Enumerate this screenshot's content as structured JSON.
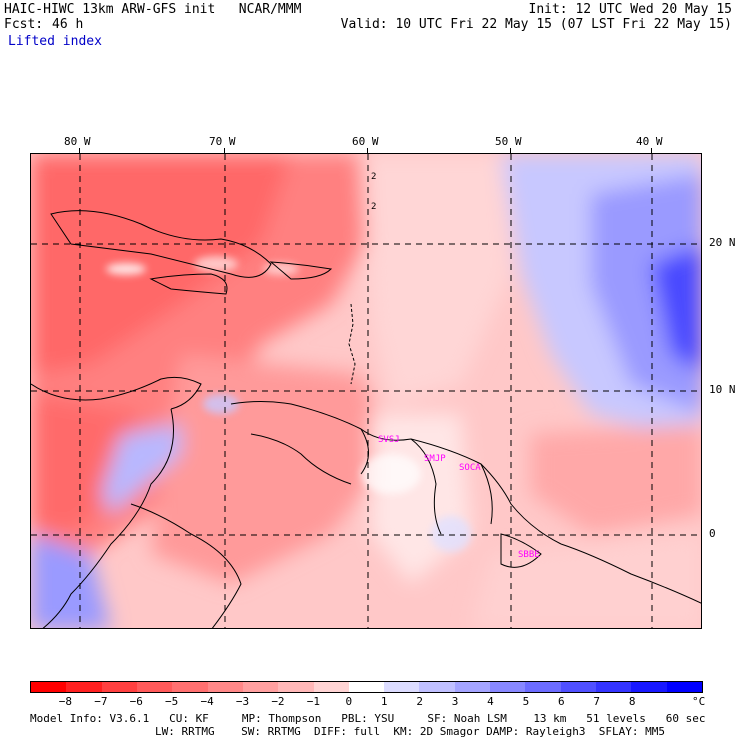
{
  "header": {
    "model_title": "HAIC-HIWC 13km ARW-GFS init   NCAR/MMM",
    "init": "Init: 12 UTC Wed 20 May 15",
    "fcst_label": "Fcst:",
    "fcst_value": "46 h",
    "valid": "Valid: 10 UTC Fri 22 May 15 (07 LST Fri 22 May 15)",
    "field": "Lifted index"
  },
  "map": {
    "lon_labels": [
      "80 W",
      "70 W",
      "60 W",
      "50 W",
      "40 W"
    ],
    "lat_labels": [
      "20 N",
      "10 N",
      "0"
    ],
    "stations": [
      "SVSJ",
      "SMJP",
      "SOCA",
      "SBBE"
    ],
    "contour_label": "2"
  },
  "colorbar": {
    "labels": [
      "−8",
      "−7",
      "−6",
      "−5",
      "−4",
      "−3",
      "−2",
      "−1",
      "0",
      "1",
      "2",
      "3",
      "4",
      "5",
      "6",
      "7",
      "8"
    ],
    "unit": "°C",
    "colors": [
      "#ff0000",
      "#ff2020",
      "#ff4040",
      "#ff5a5a",
      "#ff7070",
      "#ff8888",
      "#ffa0a0",
      "#ffb8b8",
      "#ffd4d4",
      "#ffffff",
      "#dcdcff",
      "#c0c0ff",
      "#a4a4ff",
      "#8888ff",
      "#6c6cff",
      "#5050ff",
      "#3434ff",
      "#1818ff",
      "#0000ff"
    ]
  },
  "footer": {
    "line1": "Model Info: V3.6.1   CU: KF     MP: Thompson   PBL: YSU     SF: Noah LSM    13 km   51 levels   60 sec",
    "line2": "LW: RRTMG    SW: RRTMG  DIFF: full  KM: 2D Smagor DAMP: Rayleigh3  SFLAY: MM5"
  }
}
